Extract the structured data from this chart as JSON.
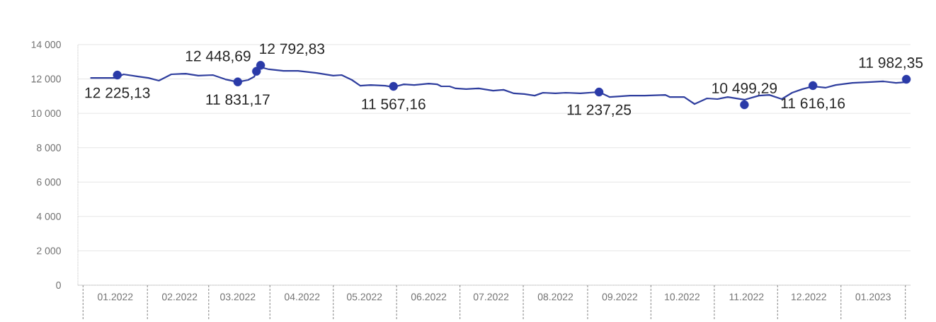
{
  "chart_data": {
    "type": "line",
    "xlim": [
      "2021-12-28",
      "2023-02-02"
    ],
    "xticks": [
      {
        "value": "2022-01-15",
        "label": "01.2022"
      },
      {
        "value": "2022-02-15",
        "label": "02.2022"
      },
      {
        "value": "2022-03-15",
        "label": "03.2022"
      },
      {
        "value": "2022-04-15",
        "label": "04.2022"
      },
      {
        "value": "2022-05-15",
        "label": "05.2022"
      },
      {
        "value": "2022-06-15",
        "label": "06.2022"
      },
      {
        "value": "2022-07-15",
        "label": "07.2022"
      },
      {
        "value": "2022-08-15",
        "label": "08.2022"
      },
      {
        "value": "2022-09-15",
        "label": "09.2022"
      },
      {
        "value": "2022-10-15",
        "label": "10.2022"
      },
      {
        "value": "2022-11-15",
        "label": "11.2022"
      },
      {
        "value": "2022-12-15",
        "label": "12.2022"
      },
      {
        "value": "2023-01-15",
        "label": "01.2023"
      }
    ],
    "ylim": [
      0,
      14000
    ],
    "yticks": [
      0,
      {
        "value": 2000,
        "label": "2 000"
      },
      {
        "value": 4000,
        "label": "4 000"
      },
      {
        "value": 6000,
        "label": "6 000"
      },
      {
        "value": 8000,
        "label": "8 000"
      },
      {
        "value": 10000,
        "label": "10 000"
      },
      {
        "value": 12000,
        "label": "12 000"
      },
      {
        "value": 14000,
        "label": "14 000"
      }
    ],
    "grid": "y",
    "series": [
      {
        "color": "#2f3e9e",
        "marker": "none",
        "line_style": "solid",
        "x": [
          "2022-01-03",
          "2022-01-15",
          "2022-01-19",
          "2022-01-26",
          "2022-01-31",
          "2022-02-05",
          "2022-02-11",
          "2022-02-18",
          "2022-02-24",
          "2022-03-03",
          "2022-03-09",
          "2022-03-15",
          "2022-03-20",
          "2022-03-23",
          "2022-03-24",
          "2022-03-26",
          "2022-03-30",
          "2022-04-06",
          "2022-04-13",
          "2022-04-22",
          "2022-04-30",
          "2022-05-04",
          "2022-05-09",
          "2022-05-13",
          "2022-05-18",
          "2022-05-25",
          "2022-05-29",
          "2022-06-03",
          "2022-06-08",
          "2022-06-15",
          "2022-06-19",
          "2022-06-21",
          "2022-06-25",
          "2022-06-28",
          "2022-07-03",
          "2022-07-09",
          "2022-07-16",
          "2022-07-21",
          "2022-07-26",
          "2022-07-31",
          "2022-08-05",
          "2022-08-09",
          "2022-08-15",
          "2022-08-20",
          "2022-08-27",
          "2022-09-05",
          "2022-09-10",
          "2022-09-15",
          "2022-09-20",
          "2022-09-27",
          "2022-10-07",
          "2022-10-09",
          "2022-10-16",
          "2022-10-21",
          "2022-10-27",
          "2022-11-01",
          "2022-11-06",
          "2022-11-14",
          "2022-11-21",
          "2022-11-26",
          "2022-12-02",
          "2022-12-07",
          "2022-12-12",
          "2022-12-17",
          "2022-12-23",
          "2022-12-28",
          "2023-01-05",
          "2023-01-14",
          "2023-01-20",
          "2023-01-26",
          "2023-01-31"
        ],
        "values": [
          12060,
          12060,
          12270,
          12140,
          12060,
          11900,
          12270,
          12310,
          12190,
          12230,
          11980,
          11820,
          11940,
          12140,
          12600,
          12680,
          12560,
          12470,
          12470,
          12350,
          12190,
          12230,
          11940,
          11610,
          11650,
          11610,
          11530,
          11690,
          11650,
          11730,
          11690,
          11570,
          11570,
          11450,
          11410,
          11450,
          11320,
          11370,
          11160,
          11120,
          11030,
          11200,
          11160,
          11200,
          11160,
          11240,
          10950,
          10990,
          11030,
          11030,
          11070,
          10950,
          10950,
          10540,
          10870,
          10830,
          10950,
          10790,
          11030,
          11070,
          10830,
          11200,
          11410,
          11570,
          11490,
          11650,
          11770,
          11820,
          11860,
          11770,
          11820
        ]
      },
      {
        "type": "scatter",
        "color": "#2a3aa8",
        "marker": "circle",
        "x": [
          "2022-01-16",
          "2022-03-15",
          "2022-03-24",
          "2022-03-26",
          "2022-05-29",
          "2022-09-05",
          "2022-11-14",
          "2022-12-17",
          "2023-01-31"
        ],
        "values": [
          12225.13,
          11831.17,
          12448.69,
          12792.83,
          11567.16,
          11237.25,
          10499.29,
          11616.16,
          11982.35
        ],
        "value_labels": [
          "12 225,13",
          "11 831,17",
          "12 448,69",
          "12 792,83",
          "11 567,16",
          "11 237,25",
          "10 499,29",
          "11 616,16",
          "11 982,35"
        ]
      }
    ]
  }
}
